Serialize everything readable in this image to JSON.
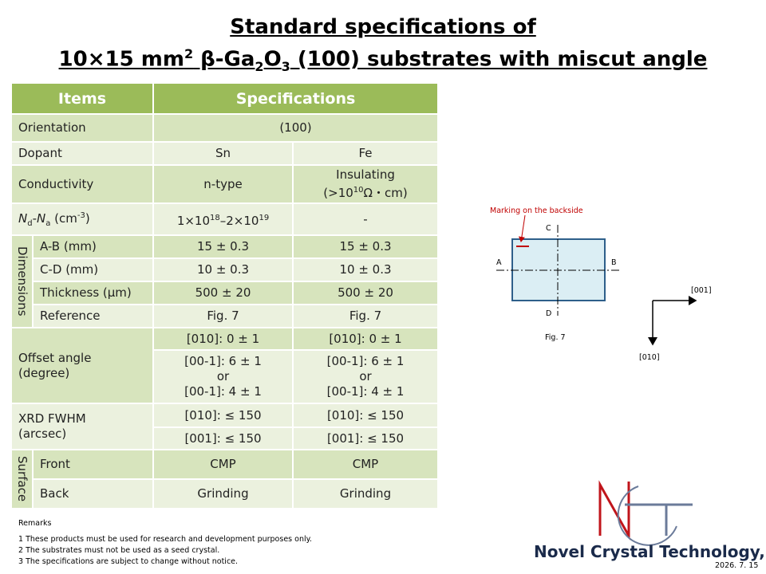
{
  "header": {
    "title_line1": "Standard specifications of",
    "title_line2": [
      "10×15 mm",
      "2",
      " β-Ga",
      "2",
      "O",
      "3",
      " (100) substrates with miscut angle"
    ]
  },
  "table": {
    "headers": [
      "Items",
      "Specifications"
    ],
    "orientation": [
      "Orientation",
      "(100)"
    ],
    "dopant": [
      "Dopant",
      "Sn",
      "Fe"
    ],
    "conductivity": {
      "label": "Conductivity",
      "sn": "n-type",
      "fe": [
        "Insulating",
        "(>10",
        "10",
        "Ω・cm)"
      ]
    },
    "carrier": {
      "label": [
        "N",
        "d",
        "-",
        "N",
        "a",
        " (cm",
        "-3",
        ")"
      ],
      "sn": [
        "1×10",
        "18",
        "–2×10",
        "19"
      ],
      "fe": "-"
    },
    "dimensions": {
      "label": "Dimensions",
      "rows": [
        [
          "A-B (mm)",
          "15 ± 0.3",
          "15 ± 0.3"
        ],
        [
          "C-D (mm)",
          "10 ± 0.3",
          "10 ± 0.3"
        ],
        [
          "Thickness (μm)",
          "500 ± 20",
          "500 ± 20"
        ],
        [
          "Reference",
          "Fig. 7",
          "Fig. 7"
        ]
      ]
    },
    "offset": {
      "label": [
        "Offset angle",
        "(degree)"
      ],
      "rows": [
        [
          "[010]: 0 ± 1",
          "[010]: 0 ± 1"
        ],
        [
          [
            "[00-1]: 6 ± 1",
            "or",
            "[00-1]: 4 ± 1"
          ],
          [
            "[00-1]: 6 ± 1",
            "or",
            "[00-1]: 4 ± 1"
          ]
        ]
      ]
    },
    "xrd": {
      "label": [
        "XRD FWHM",
        "(arcsec)"
      ],
      "rows": [
        [
          "[010]: ≤ 150",
          "[010]: ≤ 150"
        ],
        [
          "[001]: ≤ 150",
          "[001]: ≤ 150"
        ]
      ]
    },
    "surface": {
      "label": "Surface",
      "rows": [
        [
          "Front",
          "CMP",
          "CMP"
        ],
        [
          "Back",
          "Grinding",
          "Grinding"
        ]
      ]
    }
  },
  "remarks": {
    "title": "Remarks",
    "items": [
      "1 These products must be used for research and development purposes only.",
      "2 The substrates must not be used as a seed crystal.",
      "3 The specifications are subject to change without notice."
    ]
  },
  "figure": {
    "marking": "Marking on the backside",
    "points": [
      "C",
      "A",
      "B",
      "D"
    ],
    "caption": "Fig. 7",
    "axes": [
      "[001]",
      "[010]"
    ]
  },
  "footer": {
    "company": "Novel Crystal Technology, Inc.",
    "date": "2026. 7. 15"
  }
}
